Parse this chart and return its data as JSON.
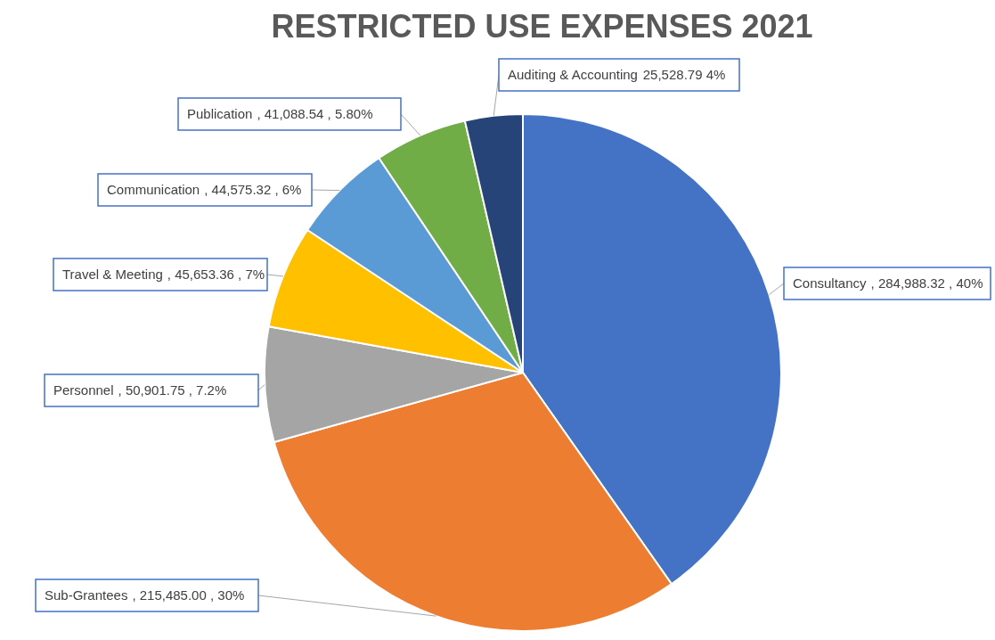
{
  "chart_data": {
    "type": "pie",
    "title": "RESTRICTED USE EXPENSES 2021",
    "categories": [
      "Consultancy",
      "Sub-Grantees",
      "Personnel",
      "Travel & Meeting",
      "Communication",
      "Publication",
      "Auditing & Accounting"
    ],
    "values": [
      284988.32,
      215485.0,
      50901.75,
      45653.36,
      44575.32,
      41088.54,
      25528.79
    ],
    "colors": [
      "#4472c4",
      "#ed7d31",
      "#a5a5a5",
      "#ffc000",
      "#5b9bd5",
      "#70ad47",
      "#264478"
    ],
    "value_labels": [
      ", 284,988.32 , 40%",
      ", 215,485.00 , 30%",
      ", 50,901.75 , 7.2%",
      ", 45,653.36 , 7%",
      ", 44,575.32 , 6%",
      ", 41,088.54 , 5.80%",
      "25,528.79  4%"
    ]
  }
}
